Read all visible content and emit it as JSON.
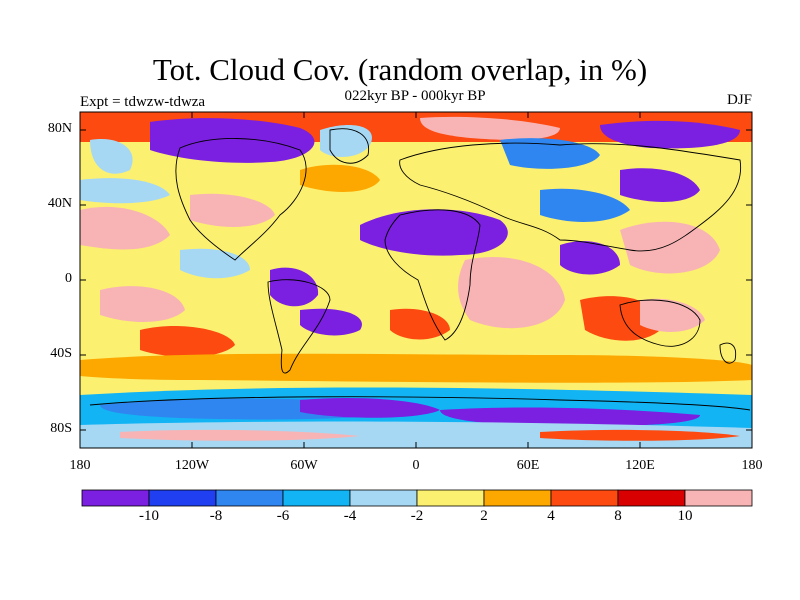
{
  "header": {
    "title": "Tot. Cloud Cov. (random overlap, in %)",
    "subtitle": "022kyr BP - 000kyr BP",
    "left_label": "Expt = tdwzw-tdwza",
    "right_label": "DJF"
  },
  "axes": {
    "lat_ticks": [
      "80N",
      "40N",
      "0",
      "40S",
      "80S"
    ],
    "lon_ticks": [
      "180",
      "120W",
      "60W",
      "0",
      "60E",
      "120E",
      "180"
    ]
  },
  "colorbar": {
    "colors": [
      "#7b1fe0",
      "#1f3ff0",
      "#2f86f0",
      "#12b4f4",
      "#a6d8f4",
      "#fcf070",
      "#fca800",
      "#fc4a10",
      "#d80000",
      "#f8b4b4"
    ],
    "labels": [
      "-10",
      "-8",
      "-6",
      "-4",
      "-2",
      "2",
      "4",
      "8",
      "10"
    ]
  }
}
